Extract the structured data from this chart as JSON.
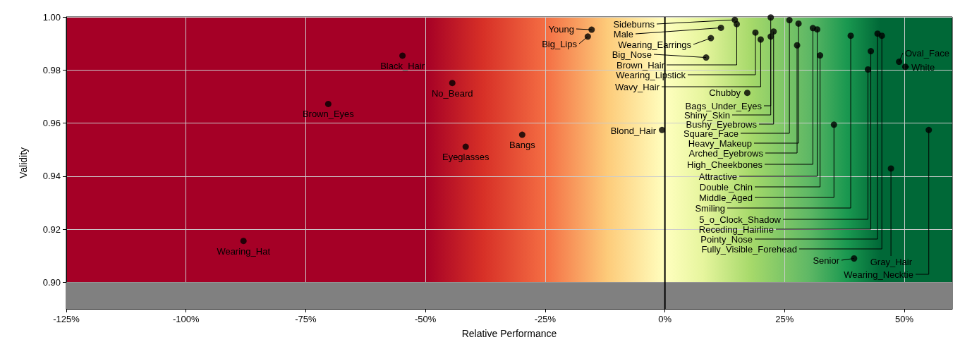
{
  "chart_data": {
    "type": "scatter",
    "xlabel": "Relative Performance",
    "ylabel": "Validity",
    "xlim": [
      -125,
      60
    ],
    "ylim": [
      0.89,
      1.0
    ],
    "xticks": [
      {
        "value": -125,
        "label": "-125%"
      },
      {
        "value": -100,
        "label": "-100%"
      },
      {
        "value": -75,
        "label": "-75%"
      },
      {
        "value": -50,
        "label": "-50%"
      },
      {
        "value": -25,
        "label": "-25%"
      },
      {
        "value": 0,
        "label": "0%"
      },
      {
        "value": 25,
        "label": "25%"
      },
      {
        "value": 50,
        "label": "50%"
      }
    ],
    "yticks": [
      {
        "value": 0.9,
        "label": "0.90"
      },
      {
        "value": 0.92,
        "label": "0.92"
      },
      {
        "value": 0.94,
        "label": "0.94"
      },
      {
        "value": 0.96,
        "label": "0.96"
      },
      {
        "value": 0.98,
        "label": "0.98"
      },
      {
        "value": 1.0,
        "label": "1.00"
      }
    ],
    "grid": true,
    "marker": "circle",
    "ref_lines": [
      {
        "axis": "x",
        "value": 0,
        "color": "#000000"
      }
    ],
    "bands": [
      {
        "axis": "y",
        "from": 0.89,
        "to": 0.9,
        "color": "#808080"
      }
    ],
    "series": [
      {
        "color": "#000000",
        "x": [
          -88.0,
          -70.3,
          -54.8,
          -44.4,
          -41.6,
          -29.8,
          -15.3,
          -16.1,
          -0.6,
          14.6,
          11.7,
          9.6,
          8.6,
          15.0,
          18.9,
          20.0,
          17.2,
          22.1,
          22.1,
          22.7,
          26.0,
          27.9,
          27.6,
          30.9,
          31.8,
          32.4,
          35.3,
          38.8,
          42.4,
          43.0,
          44.4,
          45.3,
          39.5,
          47.2,
          55.1,
          48.9,
          50.2
        ],
        "values": [
          0.9156,
          0.9672,
          0.9854,
          0.9751,
          0.9511,
          0.9556,
          0.9952,
          0.9926,
          0.9574,
          0.9989,
          0.9959,
          0.992,
          0.9847,
          0.9973,
          0.9941,
          0.9915,
          0.9714,
          0.9998,
          0.9926,
          0.9945,
          0.9988,
          0.9975,
          0.9893,
          0.9958,
          0.9953,
          0.9855,
          0.9594,
          0.9929,
          0.9802,
          0.9871,
          0.9937,
          0.9929,
          0.909,
          0.9429,
          0.9574,
          0.9831,
          0.9812
        ]
      }
    ],
    "annotations": [
      {
        "text": "Wearing_Hat",
        "x": -88.0,
        "y": 0.9156
      },
      {
        "text": "Brown_Eyes",
        "x": -70.3,
        "y": 0.9672
      },
      {
        "text": "Black_Hair",
        "x": -54.8,
        "y": 0.9854
      },
      {
        "text": "No_Beard",
        "x": -44.4,
        "y": 0.9751
      },
      {
        "text": "Eyeglasses",
        "x": -41.6,
        "y": 0.9511
      },
      {
        "text": "Bangs",
        "x": -29.8,
        "y": 0.9556
      },
      {
        "text": "Young",
        "x": -15.3,
        "y": 0.9952
      },
      {
        "text": "Big_Lips",
        "x": -16.1,
        "y": 0.9926
      },
      {
        "text": "Blond_Hair",
        "x": -0.6,
        "y": 0.9574
      },
      {
        "text": "Sideburns",
        "x": 14.6,
        "y": 0.9989
      },
      {
        "text": "Male",
        "x": 11.7,
        "y": 0.9959
      },
      {
        "text": "Wearing_Earrings",
        "x": 9.6,
        "y": 0.992
      },
      {
        "text": "Big_Nose",
        "x": 8.6,
        "y": 0.9847
      },
      {
        "text": "Brown_Hair",
        "x": 15.0,
        "y": 0.9973
      },
      {
        "text": "Wearing_Lipstick",
        "x": 18.9,
        "y": 0.9941
      },
      {
        "text": "Wavy_Hair",
        "x": 20.0,
        "y": 0.9915
      },
      {
        "text": "Chubby",
        "x": 17.2,
        "y": 0.9714
      },
      {
        "text": "Bags_Under_Eyes",
        "x": 22.1,
        "y": 0.9998
      },
      {
        "text": "Shiny_Skin",
        "x": 22.1,
        "y": 0.9926
      },
      {
        "text": "Bushy_Eyebrows",
        "x": 22.7,
        "y": 0.9945
      },
      {
        "text": "Square_Face",
        "x": 26.0,
        "y": 0.9988
      },
      {
        "text": "Heavy_Makeup",
        "x": 27.9,
        "y": 0.9975
      },
      {
        "text": "Arched_Eyebrows",
        "x": 27.6,
        "y": 0.9893
      },
      {
        "text": "High_Cheekbones",
        "x": 30.9,
        "y": 0.9958
      },
      {
        "text": "Attractive",
        "x": 31.8,
        "y": 0.9953
      },
      {
        "text": "Double_Chin",
        "x": 32.4,
        "y": 0.9855
      },
      {
        "text": "Middle_Aged",
        "x": 35.3,
        "y": 0.9594
      },
      {
        "text": "Smiling",
        "x": 38.8,
        "y": 0.9929
      },
      {
        "text": "5_o_Clock_Shadow",
        "x": 42.4,
        "y": 0.9802
      },
      {
        "text": "Receding_Hairline",
        "x": 43.0,
        "y": 0.9871
      },
      {
        "text": "Pointy_Nose",
        "x": 44.4,
        "y": 0.9937
      },
      {
        "text": "Fully_Visible_Forehead",
        "x": 45.3,
        "y": 0.9929
      },
      {
        "text": "Senior",
        "x": 39.5,
        "y": 0.909
      },
      {
        "text": "Gray_Hair",
        "x": 47.2,
        "y": 0.9429
      },
      {
        "text": "Wearing_Necktie",
        "x": 55.1,
        "y": 0.9574
      },
      {
        "text": "Oval_Face",
        "x": 48.9,
        "y": 0.9831
      },
      {
        "text": "White",
        "x": 50.2,
        "y": 0.9812
      }
    ]
  }
}
